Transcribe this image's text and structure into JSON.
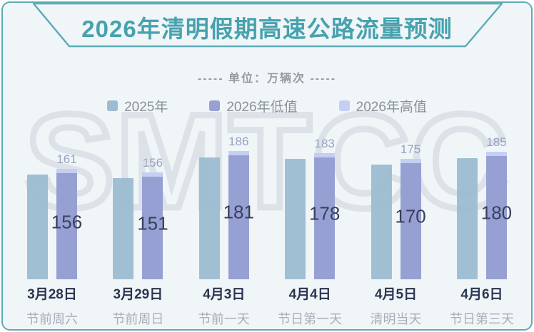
{
  "title": "2026年清明假期高速公路流量预测",
  "units_line": "----- 单位：万辆次 -----",
  "watermark": "SMTCC",
  "colors": {
    "accent_teal": "#47a2ae",
    "border_teal": "#5cacb7",
    "card_bg": "#f0f6f8",
    "bar_2025": "#9bbcd1",
    "bar_2026_low": "#97a0d3",
    "bar_2026_high": "#c5cef3",
    "value_dark": "#39405c",
    "value_light": "#98a1c1"
  },
  "legend": [
    {
      "label": "2025年",
      "color": "#9bbcd1"
    },
    {
      "label": "2026年低值",
      "color": "#97a0d3"
    },
    {
      "label": "2026年高值",
      "color": "#c5cef3"
    }
  ],
  "chart_data": {
    "type": "bar",
    "title": "2026年清明假期高速公路流量预测",
    "unit": "万辆次",
    "legend_position": "top",
    "grid": false,
    "y_axis_shown": false,
    "categories": [
      {
        "date": "3月28日",
        "desc": "节前周六"
      },
      {
        "date": "3月29日",
        "desc": "节前周日"
      },
      {
        "date": "4月3日",
        "desc": "节前一天"
      },
      {
        "date": "4月4日",
        "desc": "节日第一天"
      },
      {
        "date": "4月5日",
        "desc": "清明当天"
      },
      {
        "date": "4月6日",
        "desc": "节日第三天"
      }
    ],
    "series": [
      {
        "name": "2025年",
        "values": [
          154,
          149,
          178,
          176,
          168,
          177
        ],
        "labeled": false,
        "estimated": true
      },
      {
        "name": "2026年低值",
        "values": [
          156,
          151,
          181,
          178,
          170,
          180
        ],
        "labeled": true
      },
      {
        "name": "2026年高值",
        "values": [
          161,
          156,
          186,
          183,
          175,
          185
        ],
        "labeled": true
      }
    ]
  }
}
